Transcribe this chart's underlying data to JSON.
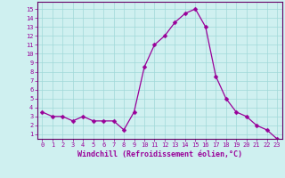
{
  "x": [
    0,
    1,
    2,
    3,
    4,
    5,
    6,
    7,
    8,
    9,
    10,
    11,
    12,
    13,
    14,
    15,
    16,
    17,
    18,
    19,
    20,
    21,
    22,
    23
  ],
  "y": [
    3.5,
    3.0,
    3.0,
    2.5,
    3.0,
    2.5,
    2.5,
    2.5,
    1.5,
    3.5,
    8.5,
    11.0,
    12.0,
    13.5,
    14.5,
    15.0,
    13.0,
    7.5,
    5.0,
    3.5,
    3.0,
    2.0,
    1.5,
    0.5
  ],
  "line_color": "#990099",
  "markersize": 2.5,
  "linewidth": 0.9,
  "bg_color": "#cff0f0",
  "grid_color": "#a0d8d8",
  "tick_color": "#990099",
  "label_color": "#990099",
  "xlabel": "Windchill (Refroidissement éolien,°C)",
  "ylabel_ticks": [
    1,
    2,
    3,
    4,
    5,
    6,
    7,
    8,
    9,
    10,
    11,
    12,
    13,
    14,
    15
  ],
  "xtick_fontsize": 5.0,
  "ytick_fontsize": 5.0,
  "xlabel_fontsize": 6.0,
  "xlim": [
    -0.5,
    23.5
  ],
  "ylim": [
    0.5,
    15.8
  ],
  "spine_color": "#660066"
}
